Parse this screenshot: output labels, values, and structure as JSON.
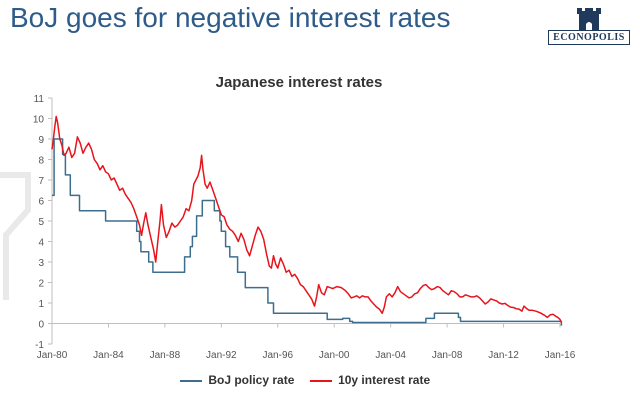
{
  "slide": {
    "title": "BoJ goes for negative interest rates",
    "logo_text": "ECONOPOLIS"
  },
  "colors": {
    "title": "#2e5c8a",
    "policy_rate": "#3d6e8e",
    "bond_rate": "#e8141c"
  },
  "chart_data": {
    "type": "line",
    "title": "Japanese interest rates",
    "xlabel": "",
    "ylabel": "",
    "ylim": [
      -1,
      11
    ],
    "yticks": [
      -1,
      0,
      1,
      2,
      3,
      4,
      5,
      6,
      7,
      8,
      9,
      10,
      11
    ],
    "xlim": [
      1980.0,
      2016.0
    ],
    "xticks": [
      {
        "x": 1980,
        "label": "Jan-80"
      },
      {
        "x": 1984,
        "label": "Jan-84"
      },
      {
        "x": 1988,
        "label": "Jan-88"
      },
      {
        "x": 1992,
        "label": "Jan-92"
      },
      {
        "x": 1996,
        "label": "Jan-96"
      },
      {
        "x": 2000,
        "label": "Jan-00"
      },
      {
        "x": 2004,
        "label": "Jan-04"
      },
      {
        "x": 2008,
        "label": "Jan-08"
      },
      {
        "x": 2012,
        "label": "Jan-12"
      },
      {
        "x": 2016,
        "label": "Jan-16"
      }
    ],
    "grid": false,
    "legend": "bottom",
    "series": [
      {
        "name": "BoJ policy rate",
        "color": "#3d6e8e",
        "step": true,
        "points": [
          [
            1980.0,
            6.25
          ],
          [
            1980.15,
            9.0
          ],
          [
            1980.6,
            9.0
          ],
          [
            1980.75,
            8.25
          ],
          [
            1980.95,
            7.25
          ],
          [
            1981.3,
            6.25
          ],
          [
            1981.95,
            5.5
          ],
          [
            1983.8,
            5.0
          ],
          [
            1986.0,
            4.5
          ],
          [
            1986.2,
            4.0
          ],
          [
            1986.3,
            3.5
          ],
          [
            1986.85,
            3.0
          ],
          [
            1987.15,
            2.5
          ],
          [
            1989.4,
            3.25
          ],
          [
            1989.8,
            3.75
          ],
          [
            1989.95,
            4.25
          ],
          [
            1990.25,
            5.25
          ],
          [
            1990.65,
            6.0
          ],
          [
            1991.5,
            5.5
          ],
          [
            1991.9,
            5.0
          ],
          [
            1992.0,
            4.5
          ],
          [
            1992.3,
            3.75
          ],
          [
            1992.6,
            3.25
          ],
          [
            1993.15,
            2.5
          ],
          [
            1993.7,
            1.75
          ],
          [
            1995.3,
            1.0
          ],
          [
            1995.7,
            0.5
          ],
          [
            1999.1,
            0.5
          ],
          [
            1999.5,
            0.2
          ],
          [
            2000.6,
            0.25
          ],
          [
            2001.1,
            0.1
          ],
          [
            2001.3,
            0.05
          ],
          [
            2006.5,
            0.25
          ],
          [
            2007.1,
            0.5
          ],
          [
            2008.8,
            0.3
          ],
          [
            2008.95,
            0.1
          ],
          [
            2015.9,
            0.1
          ],
          [
            2016.1,
            -0.1
          ]
        ]
      },
      {
        "name": "10y interest rate",
        "color": "#e8141c",
        "step": false,
        "points": [
          [
            1980.0,
            8.5
          ],
          [
            1980.1,
            9.0
          ],
          [
            1980.2,
            9.6
          ],
          [
            1980.3,
            10.1
          ],
          [
            1980.4,
            9.8
          ],
          [
            1980.55,
            9.0
          ],
          [
            1980.7,
            8.7
          ],
          [
            1980.85,
            8.2
          ],
          [
            1981.0,
            8.3
          ],
          [
            1981.2,
            8.6
          ],
          [
            1981.4,
            8.1
          ],
          [
            1981.6,
            8.3
          ],
          [
            1981.8,
            9.1
          ],
          [
            1982.0,
            8.8
          ],
          [
            1982.2,
            8.3
          ],
          [
            1982.4,
            8.6
          ],
          [
            1982.6,
            8.8
          ],
          [
            1982.8,
            8.5
          ],
          [
            1983.0,
            8.0
          ],
          [
            1983.2,
            7.8
          ],
          [
            1983.4,
            7.5
          ],
          [
            1983.6,
            7.7
          ],
          [
            1983.8,
            7.4
          ],
          [
            1984.0,
            7.3
          ],
          [
            1984.2,
            7.0
          ],
          [
            1984.4,
            7.1
          ],
          [
            1984.6,
            6.8
          ],
          [
            1984.8,
            6.5
          ],
          [
            1985.0,
            6.6
          ],
          [
            1985.2,
            6.3
          ],
          [
            1985.4,
            6.1
          ],
          [
            1985.6,
            5.9
          ],
          [
            1985.8,
            5.6
          ],
          [
            1986.0,
            5.2
          ],
          [
            1986.2,
            4.8
          ],
          [
            1986.35,
            4.3
          ],
          [
            1986.5,
            4.9
          ],
          [
            1986.65,
            5.4
          ],
          [
            1986.8,
            4.8
          ],
          [
            1987.0,
            4.2
          ],
          [
            1987.2,
            3.6
          ],
          [
            1987.35,
            3.0
          ],
          [
            1987.5,
            4.0
          ],
          [
            1987.65,
            5.0
          ],
          [
            1987.75,
            5.8
          ],
          [
            1987.9,
            4.8
          ],
          [
            1988.1,
            4.2
          ],
          [
            1988.3,
            4.5
          ],
          [
            1988.5,
            4.9
          ],
          [
            1988.7,
            4.7
          ],
          [
            1988.9,
            4.8
          ],
          [
            1989.1,
            5.0
          ],
          [
            1989.3,
            5.2
          ],
          [
            1989.5,
            5.6
          ],
          [
            1989.7,
            5.5
          ],
          [
            1989.9,
            6.0
          ],
          [
            1990.05,
            6.8
          ],
          [
            1990.2,
            7.0
          ],
          [
            1990.35,
            7.2
          ],
          [
            1990.5,
            7.6
          ],
          [
            1990.6,
            8.2
          ],
          [
            1990.7,
            7.5
          ],
          [
            1990.85,
            6.8
          ],
          [
            1991.0,
            6.6
          ],
          [
            1991.2,
            6.9
          ],
          [
            1991.4,
            6.5
          ],
          [
            1991.6,
            6.1
          ],
          [
            1991.8,
            5.7
          ],
          [
            1992.0,
            5.3
          ],
          [
            1992.2,
            5.2
          ],
          [
            1992.4,
            4.8
          ],
          [
            1992.6,
            4.6
          ],
          [
            1992.8,
            4.5
          ],
          [
            1993.0,
            4.3
          ],
          [
            1993.2,
            4.0
          ],
          [
            1993.4,
            4.4
          ],
          [
            1993.6,
            4.1
          ],
          [
            1993.8,
            3.6
          ],
          [
            1994.0,
            3.3
          ],
          [
            1994.2,
            3.8
          ],
          [
            1994.4,
            4.3
          ],
          [
            1994.6,
            4.7
          ],
          [
            1994.8,
            4.5
          ],
          [
            1995.0,
            4.1
          ],
          [
            1995.2,
            3.4
          ],
          [
            1995.4,
            2.8
          ],
          [
            1995.55,
            2.7
          ],
          [
            1995.7,
            3.3
          ],
          [
            1995.85,
            2.9
          ],
          [
            1996.0,
            2.7
          ],
          [
            1996.2,
            3.2
          ],
          [
            1996.4,
            2.9
          ],
          [
            1996.6,
            2.5
          ],
          [
            1996.8,
            2.6
          ],
          [
            1997.0,
            2.3
          ],
          [
            1997.2,
            2.4
          ],
          [
            1997.4,
            2.2
          ],
          [
            1997.6,
            1.9
          ],
          [
            1997.8,
            1.8
          ],
          [
            1998.0,
            1.6
          ],
          [
            1998.2,
            1.4
          ],
          [
            1998.4,
            1.2
          ],
          [
            1998.6,
            0.85
          ],
          [
            1998.75,
            1.3
          ],
          [
            1998.9,
            1.9
          ],
          [
            1999.1,
            1.5
          ],
          [
            1999.3,
            1.4
          ],
          [
            1999.5,
            1.8
          ],
          [
            1999.7,
            1.75
          ],
          [
            1999.9,
            1.7
          ],
          [
            2000.2,
            1.8
          ],
          [
            2000.5,
            1.75
          ],
          [
            2000.8,
            1.6
          ],
          [
            2001.0,
            1.45
          ],
          [
            2001.2,
            1.25
          ],
          [
            2001.4,
            1.3
          ],
          [
            2001.6,
            1.35
          ],
          [
            2001.8,
            1.25
          ],
          [
            2002.0,
            1.35
          ],
          [
            2002.2,
            1.3
          ],
          [
            2002.4,
            1.3
          ],
          [
            2002.6,
            1.1
          ],
          [
            2002.8,
            0.95
          ],
          [
            2003.0,
            0.8
          ],
          [
            2003.2,
            0.7
          ],
          [
            2003.4,
            0.5
          ],
          [
            2003.55,
            0.8
          ],
          [
            2003.7,
            1.3
          ],
          [
            2003.9,
            1.45
          ],
          [
            2004.1,
            1.3
          ],
          [
            2004.3,
            1.5
          ],
          [
            2004.5,
            1.8
          ],
          [
            2004.7,
            1.55
          ],
          [
            2004.9,
            1.45
          ],
          [
            2005.1,
            1.35
          ],
          [
            2005.3,
            1.25
          ],
          [
            2005.5,
            1.3
          ],
          [
            2005.7,
            1.45
          ],
          [
            2005.9,
            1.5
          ],
          [
            2006.1,
            1.7
          ],
          [
            2006.3,
            1.85
          ],
          [
            2006.5,
            1.9
          ],
          [
            2006.7,
            1.75
          ],
          [
            2006.9,
            1.65
          ],
          [
            2007.1,
            1.7
          ],
          [
            2007.3,
            1.8
          ],
          [
            2007.5,
            1.75
          ],
          [
            2007.7,
            1.6
          ],
          [
            2007.9,
            1.5
          ],
          [
            2008.1,
            1.4
          ],
          [
            2008.3,
            1.6
          ],
          [
            2008.5,
            1.55
          ],
          [
            2008.7,
            1.45
          ],
          [
            2008.9,
            1.3
          ],
          [
            2009.1,
            1.3
          ],
          [
            2009.3,
            1.4
          ],
          [
            2009.5,
            1.35
          ],
          [
            2009.7,
            1.3
          ],
          [
            2009.9,
            1.3
          ],
          [
            2010.1,
            1.35
          ],
          [
            2010.3,
            1.25
          ],
          [
            2010.5,
            1.1
          ],
          [
            2010.7,
            0.95
          ],
          [
            2010.9,
            1.05
          ],
          [
            2011.1,
            1.2
          ],
          [
            2011.3,
            1.15
          ],
          [
            2011.5,
            1.1
          ],
          [
            2011.7,
            1.0
          ],
          [
            2011.9,
            0.95
          ],
          [
            2012.1,
            0.98
          ],
          [
            2012.3,
            0.88
          ],
          [
            2012.5,
            0.8
          ],
          [
            2012.7,
            0.78
          ],
          [
            2012.9,
            0.72
          ],
          [
            2013.1,
            0.7
          ],
          [
            2013.3,
            0.6
          ],
          [
            2013.45,
            0.85
          ],
          [
            2013.6,
            0.75
          ],
          [
            2013.8,
            0.65
          ],
          [
            2014.0,
            0.65
          ],
          [
            2014.3,
            0.6
          ],
          [
            2014.6,
            0.52
          ],
          [
            2014.9,
            0.4
          ],
          [
            2015.1,
            0.3
          ],
          [
            2015.3,
            0.42
          ],
          [
            2015.5,
            0.45
          ],
          [
            2015.7,
            0.35
          ],
          [
            2015.85,
            0.3
          ],
          [
            2016.0,
            0.2
          ],
          [
            2016.1,
            0.05
          ]
        ]
      }
    ]
  }
}
